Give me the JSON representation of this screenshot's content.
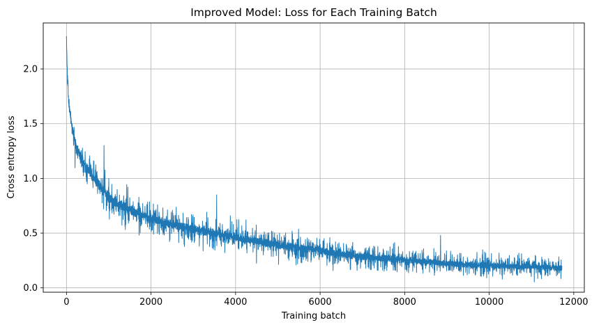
{
  "chart_data": {
    "type": "line",
    "title": "Improved Model: Loss for Each Training Batch",
    "xlabel": "Training batch",
    "ylabel": "Cross entropy loss",
    "xlim": [
      -550,
      12250
    ],
    "ylim": [
      -0.04,
      2.42
    ],
    "xticks": [
      0,
      2000,
      4000,
      6000,
      8000,
      10000,
      12000
    ],
    "xtick_labels": [
      "0",
      "2000",
      "4000",
      "6000",
      "8000",
      "10000",
      "12000"
    ],
    "yticks": [
      0.0,
      0.5,
      1.0,
      1.5,
      2.0
    ],
    "ytick_labels": [
      "0.0",
      "0.5",
      "1.0",
      "1.5",
      "2.0"
    ],
    "grid": true,
    "legend": "none",
    "series": [
      {
        "color": "#1f77b4",
        "n_points": 11720,
        "envelope": {
          "x": [
            0,
            20,
            50,
            100,
            150,
            200,
            300,
            400,
            600,
            800,
            1000,
            1200,
            1500,
            2000,
            2500,
            3000,
            3500,
            4000,
            4500,
            5000,
            5500,
            6000,
            6500,
            7000,
            7500,
            8000,
            8500,
            9000,
            9500,
            10000,
            10500,
            11000,
            11500,
            11720
          ],
          "upper": [
            2.3,
            2.1,
            1.85,
            1.7,
            1.62,
            1.55,
            1.45,
            1.38,
            1.25,
            1.15,
            1.05,
            0.98,
            0.92,
            0.82,
            0.78,
            0.72,
            0.68,
            0.64,
            0.6,
            0.56,
            0.53,
            0.5,
            0.46,
            0.44,
            0.42,
            0.4,
            0.38,
            0.36,
            0.34,
            0.33,
            0.32,
            0.32,
            0.31,
            0.3
          ],
          "lower": [
            2.2,
            1.85,
            1.55,
            1.4,
            1.25,
            1.12,
            1.0,
            0.92,
            0.8,
            0.7,
            0.62,
            0.56,
            0.5,
            0.44,
            0.38,
            0.34,
            0.32,
            0.28,
            0.25,
            0.22,
            0.2,
            0.18,
            0.15,
            0.13,
            0.12,
            0.11,
            0.1,
            0.09,
            0.08,
            0.08,
            0.07,
            0.07,
            0.06,
            0.06
          ]
        },
        "spikes": [
          {
            "x": 890,
            "y": 1.3
          },
          {
            "x": 3550,
            "y": 0.85
          },
          {
            "x": 8850,
            "y": 0.48
          }
        ]
      }
    ]
  }
}
